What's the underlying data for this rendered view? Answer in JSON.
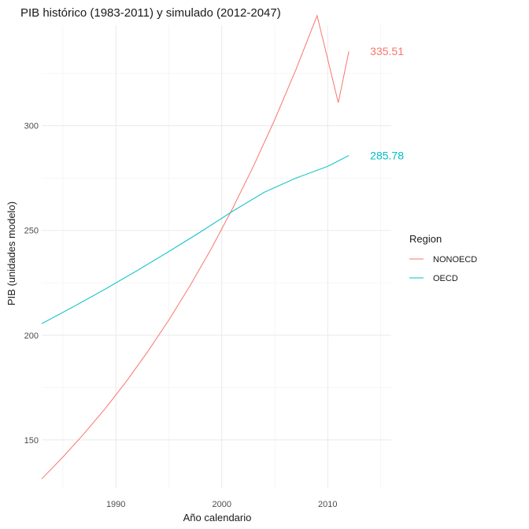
{
  "chart_data": {
    "type": "line",
    "title": "PIB histórico (1983-2011) y simulado (2012-2047)",
    "xlabel": "Año calendario",
    "ylabel": "PIB (unidades modelo)",
    "xlim": [
      1983,
      2016
    ],
    "ylim": [
      127,
      348
    ],
    "x_ticks": [
      1990,
      2000,
      2010
    ],
    "y_ticks": [
      150,
      200,
      250,
      300
    ],
    "grid": true,
    "legend": {
      "title": "Region",
      "position": "right"
    },
    "series": [
      {
        "name": "NONOECD",
        "color": "#F8766D",
        "end_label": "335.51",
        "x": [
          1983,
          1985,
          1987,
          1989,
          1991,
          1993,
          1995,
          1997,
          1999,
          2001,
          2003,
          2005,
          2007,
          2009,
          2011,
          2012
        ],
        "y": [
          131.4,
          141.8,
          153.0,
          165.0,
          178.0,
          192.1,
          207.2,
          223.6,
          241.2,
          260.3,
          280.8,
          302.9,
          326.8,
          352.6,
          311.0,
          335.51
        ]
      },
      {
        "name": "OECD",
        "color": "#00BFC4",
        "end_label": "285.78",
        "x": [
          1983,
          1986,
          1989,
          1992,
          1995,
          1998,
          2001,
          2004,
          2007,
          2010,
          2012
        ],
        "y": [
          205.5,
          213.6,
          222.0,
          230.8,
          239.9,
          249.3,
          259.1,
          268.2,
          275.0,
          280.6,
          285.78
        ]
      }
    ]
  }
}
